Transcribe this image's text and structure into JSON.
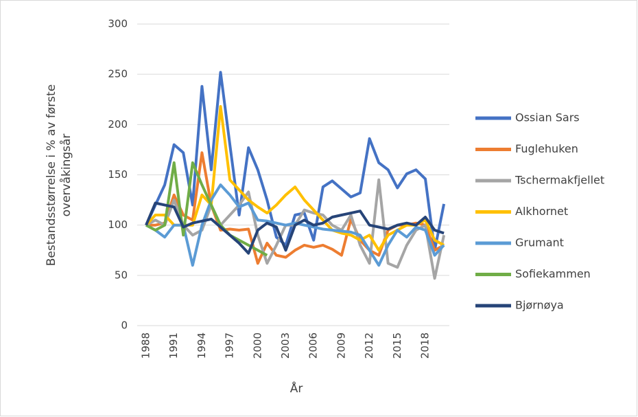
{
  "chart_data": {
    "type": "line",
    "ylabel": [
      "Bestandsstørrelse i % av første",
      "overvåkingsår"
    ],
    "xlabel": "År",
    "x": [
      1988,
      1989,
      1990,
      1991,
      1992,
      1993,
      1994,
      1995,
      1996,
      1997,
      1998,
      1999,
      2000,
      2001,
      2002,
      2003,
      2004,
      2005,
      2006,
      2007,
      2008,
      2009,
      2010,
      2011,
      2012,
      2013,
      2014,
      2015,
      2016,
      2017,
      2018,
      2019,
      2020
    ],
    "xlim": [
      1987,
      2021
    ],
    "xticks": [
      1988,
      1991,
      1994,
      1997,
      2000,
      2003,
      2006,
      2009,
      2012,
      2015,
      2018
    ],
    "ylim": [
      0,
      300
    ],
    "yticks": [
      0,
      50,
      100,
      150,
      200,
      250,
      300
    ],
    "grid": true,
    "legend": "right",
    "series": [
      {
        "name": "Ossian Sars",
        "color": "#4472c4",
        "values": [
          100,
          120,
          140,
          180,
          172,
          120,
          238,
          155,
          252,
          180,
          110,
          177,
          155,
          125,
          88,
          80,
          110,
          112,
          85,
          138,
          144,
          136,
          128,
          132,
          186,
          162,
          155,
          137,
          151,
          155,
          146,
          75,
          121
        ]
      },
      {
        "name": "Fuglehuken",
        "color": "#ed7d31",
        "values": [
          100,
          100,
          102,
          130,
          110,
          105,
          172,
          120,
          95,
          96,
          95,
          96,
          62,
          82,
          70,
          68,
          75,
          80,
          78,
          80,
          76,
          70,
          106,
          85,
          75,
          70,
          95,
          100,
          100,
          102,
          100,
          75,
          80
        ]
      },
      {
        "name": "Tschermakfjellet",
        "color": "#a5a5a5",
        "values": [
          100,
          105,
          100,
          125,
          100,
          90,
          95,
          120,
          100,
          110,
          120,
          133,
          90,
          62,
          80,
          100,
          100,
          115,
          112,
          110,
          100,
          95,
          110,
          80,
          62,
          145,
          62,
          58,
          80,
          95,
          100,
          47,
          90
        ]
      },
      {
        "name": "Alkhornet",
        "color": "#ffc000",
        "values": [
          100,
          110,
          110,
          100,
          100,
          100,
          130,
          120,
          218,
          145,
          135,
          125,
          118,
          112,
          120,
          130,
          138,
          125,
          115,
          105,
          95,
          92,
          90,
          85,
          90,
          75,
          90,
          95,
          100,
          100,
          105,
          85,
          80
        ]
      },
      {
        "name": "Grumant",
        "color": "#5b9bd5",
        "values": [
          100,
          95,
          88,
          100,
          100,
          60,
          100,
          125,
          140,
          130,
          118,
          122,
          105,
          104,
          102,
          100,
          102,
          100,
          98,
          96,
          95,
          94,
          93,
          90,
          75,
          60,
          80,
          95,
          88,
          98,
          95,
          70,
          80
        ]
      },
      {
        "name": "Sofiekammen",
        "color": "#70ad47",
        "values": [
          100,
          95,
          100,
          162,
          90,
          162,
          140,
          120,
          100,
          90,
          85,
          80,
          75,
          70,
          null,
          null,
          null,
          null,
          null,
          null,
          null,
          null,
          null,
          null,
          null,
          null,
          null,
          null,
          null,
          null,
          null,
          null,
          null
        ]
      },
      {
        "name": "Bjørnøya",
        "color": "#264478",
        "values": [
          100,
          122,
          120,
          118,
          98,
          102,
          104,
          106,
          98,
          90,
          82,
          72,
          95,
          102,
          98,
          75,
          100,
          105,
          100,
          102,
          108,
          110,
          112,
          114,
          100,
          98,
          96,
          100,
          102,
          100,
          108,
          95,
          92
        ]
      }
    ]
  }
}
